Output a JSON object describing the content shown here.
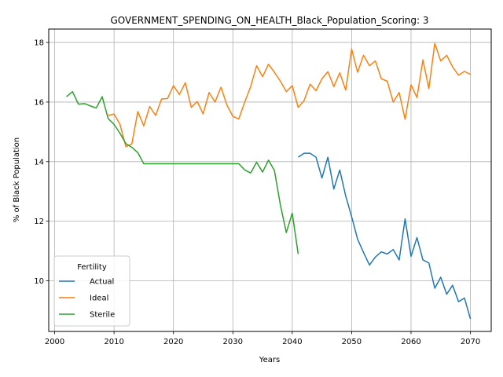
{
  "chart_data": {
    "type": "line",
    "title": "GOVERNMENT_SPENDING_ON_HEALTH_Black_Population_Scoring: 3",
    "xlabel": "Years",
    "ylabel": "% of Black Population",
    "xlim": [
      1999,
      2073.5
    ],
    "ylim": [
      8.3,
      18.45
    ],
    "xticks": [
      2000,
      2010,
      2020,
      2030,
      2040,
      2050,
      2060,
      2070
    ],
    "yticks": [
      10,
      12,
      14,
      16,
      18
    ],
    "grid": true,
    "legend": {
      "title": "Fertility",
      "position": "lower-left"
    },
    "series": [
      {
        "name": "Actual",
        "color": "#1f77b4",
        "x": [
          2041,
          2042,
          2043,
          2044,
          2045,
          2046,
          2047,
          2048,
          2049,
          2050,
          2051,
          2052,
          2053,
          2054,
          2055,
          2056,
          2057,
          2058,
          2059,
          2060,
          2061,
          2062,
          2063,
          2064,
          2065,
          2066,
          2067,
          2068,
          2069,
          2070
        ],
        "y": [
          14.15,
          14.28,
          14.28,
          14.15,
          13.45,
          14.15,
          13.08,
          13.72,
          12.85,
          12.15,
          11.4,
          10.95,
          10.53,
          10.8,
          10.97,
          10.9,
          11.05,
          10.7,
          12.08,
          10.82,
          11.45,
          10.7,
          10.6,
          9.75,
          10.12,
          9.55,
          9.85,
          9.3,
          9.42,
          8.72
        ]
      },
      {
        "name": "Ideal",
        "color": "#ff7f0e",
        "x": [
          2009,
          2010,
          2011,
          2012,
          2013,
          2014,
          2015,
          2016,
          2017,
          2018,
          2019,
          2020,
          2021,
          2022,
          2023,
          2024,
          2025,
          2026,
          2027,
          2028,
          2029,
          2030,
          2031,
          2032,
          2033,
          2034,
          2035,
          2036,
          2037,
          2038,
          2039,
          2040,
          2041,
          2042,
          2043,
          2044,
          2045,
          2046,
          2047,
          2048,
          2049,
          2050,
          2051,
          2052,
          2053,
          2054,
          2055,
          2056,
          2057,
          2058,
          2059,
          2060,
          2061,
          2062,
          2063,
          2064,
          2065,
          2066,
          2067,
          2068,
          2069,
          2070
        ],
        "y": [
          15.55,
          15.6,
          15.25,
          14.5,
          14.6,
          15.68,
          15.2,
          15.85,
          15.55,
          16.1,
          16.12,
          16.55,
          16.25,
          16.65,
          15.82,
          16.02,
          15.6,
          16.32,
          16.0,
          16.5,
          15.9,
          15.52,
          15.43,
          16.0,
          16.52,
          17.22,
          16.85,
          17.27,
          17.0,
          16.7,
          16.35,
          16.55,
          15.82,
          16.05,
          16.6,
          16.38,
          16.78,
          17.02,
          16.52,
          16.98,
          16.4,
          17.78,
          17.0,
          17.57,
          17.22,
          17.38,
          16.78,
          16.7,
          16.0,
          16.32,
          15.42,
          16.58,
          16.15,
          17.42,
          16.45,
          17.97,
          17.38,
          17.57,
          17.18,
          16.9,
          17.03,
          16.93
        ]
      },
      {
        "name": "Sterile",
        "color": "#2ca02c",
        "x": [
          2002,
          2003,
          2004,
          2005,
          2006,
          2007,
          2008,
          2009,
          2010,
          2011,
          2012,
          2013,
          2014,
          2015,
          2016,
          2017,
          2018,
          2019,
          2020,
          2021,
          2022,
          2023,
          2024,
          2025,
          2026,
          2027,
          2028,
          2029,
          2030,
          2031,
          2032,
          2033,
          2034,
          2035,
          2036,
          2037,
          2038,
          2039,
          2040,
          2041
        ],
        "y": [
          16.18,
          16.35,
          15.93,
          15.95,
          15.87,
          15.8,
          16.18,
          15.45,
          15.25,
          14.95,
          14.6,
          14.48,
          14.3,
          13.93,
          13.93,
          13.93,
          13.93,
          13.93,
          13.93,
          13.93,
          13.93,
          13.93,
          13.93,
          13.93,
          13.93,
          13.93,
          13.93,
          13.93,
          13.93,
          13.93,
          13.72,
          13.62,
          13.98,
          13.65,
          14.05,
          13.7,
          12.55,
          11.62,
          12.27,
          10.9
        ]
      }
    ]
  }
}
